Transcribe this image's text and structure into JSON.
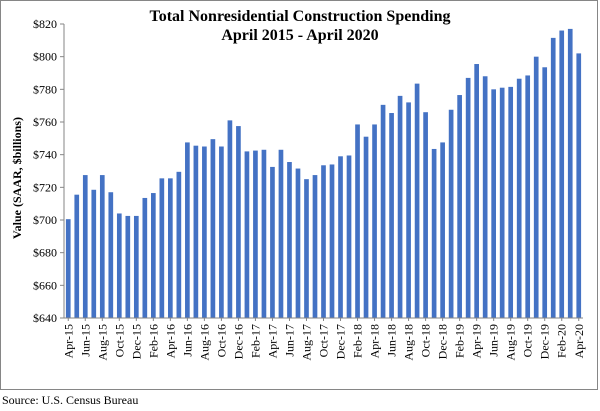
{
  "chart_data": {
    "type": "bar",
    "title": "Total Nonresidential Construction Spending",
    "subtitle": "April 2015 - April 2020",
    "ylabel": "Value (SAAR, $billions)",
    "xlabel": "",
    "ylim": [
      640,
      820
    ],
    "y_ticks": [
      "$640",
      "$660",
      "$680",
      "$700",
      "$720",
      "$740",
      "$760",
      "$780",
      "$800",
      "$820"
    ],
    "y_tick_values": [
      640,
      660,
      680,
      700,
      720,
      740,
      760,
      780,
      800,
      820
    ],
    "bar_color": "#4472C4",
    "categories": [
      "Apr-15",
      "May-15",
      "Jun-15",
      "Jul-15",
      "Aug-15",
      "Sep-15",
      "Oct-15",
      "Nov-15",
      "Dec-15",
      "Jan-16",
      "Feb-16",
      "Mar-16",
      "Apr-16",
      "May-16",
      "Jun-16",
      "Jul-16",
      "Aug-16",
      "Sep-16",
      "Oct-16",
      "Nov-16",
      "Dec-16",
      "Jan-17",
      "Feb-17",
      "Mar-17",
      "Apr-17",
      "May-17",
      "Jun-17",
      "Jul-17",
      "Aug-17",
      "Sep-17",
      "Oct-17",
      "Nov-17",
      "Dec-17",
      "Jan-18",
      "Feb-18",
      "Mar-18",
      "Apr-18",
      "May-18",
      "Jun-18",
      "Jul-18",
      "Aug-18",
      "Sep-18",
      "Oct-18",
      "Nov-18",
      "Dec-18",
      "Jan-19",
      "Feb-19",
      "Mar-19",
      "Apr-19",
      "May-19",
      "Jun-19",
      "Jul-19",
      "Aug-19",
      "Sep-19",
      "Oct-19",
      "Nov-19",
      "Dec-19",
      "Jan-20",
      "Feb-20",
      "Mar-20",
      "Apr-20"
    ],
    "x_tick_labels": [
      "Apr-15",
      "Jun-15",
      "Aug-15",
      "Oct-15",
      "Dec-15",
      "Feb-16",
      "Apr-16",
      "Jun-16",
      "Aug-16",
      "Oct-16",
      "Dec-16",
      "Feb-17",
      "Apr-17",
      "Jun-17",
      "Aug-17",
      "Oct-17",
      "Dec-17",
      "Feb-18",
      "Apr-18",
      "Jun-18",
      "Aug-18",
      "Oct-18",
      "Dec-18",
      "Feb-19",
      "Apr-19",
      "Jun-19",
      "Aug-19",
      "Oct-19",
      "Dec-19",
      "Feb-20",
      "Apr-20"
    ],
    "values": [
      700.5,
      715.5,
      727.5,
      718.5,
      727.5,
      717.0,
      704.0,
      702.5,
      702.5,
      713.5,
      716.5,
      725.5,
      725.5,
      729.5,
      747.5,
      745.5,
      745.0,
      749.5,
      745.0,
      761.0,
      757.5,
      742.0,
      742.5,
      743.0,
      732.5,
      743.0,
      735.5,
      731.5,
      725.0,
      727.5,
      733.5,
      734.0,
      739.0,
      739.5,
      758.5,
      751.0,
      758.5,
      770.5,
      765.5,
      776.0,
      772.0,
      783.5,
      766.0,
      743.5,
      747.5,
      767.5,
      776.5,
      787.0,
      795.5,
      788.0,
      780.0,
      781.0,
      781.5,
      786.5,
      788.5,
      800.0,
      793.5,
      811.5,
      816.0,
      817.0,
      802.0
    ]
  },
  "footer": {
    "source": "Source:  U.S. Census Bureau"
  }
}
